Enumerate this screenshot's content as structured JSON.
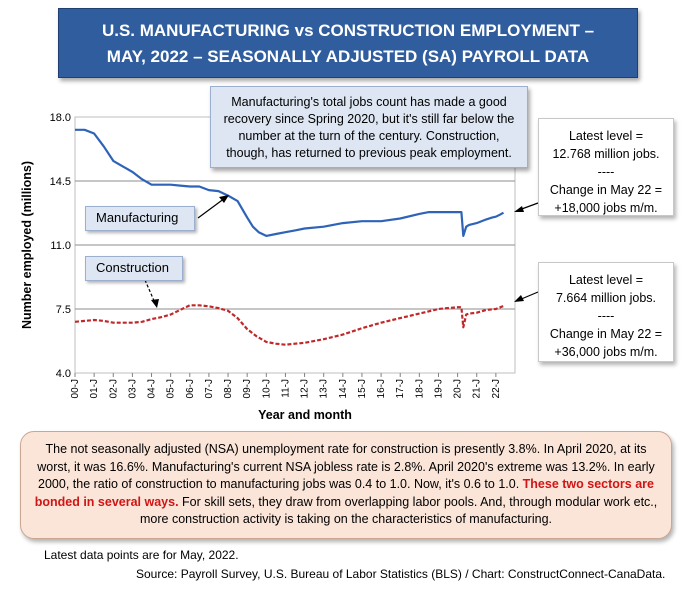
{
  "title": {
    "line1": "U.S. MANUFACTURING vs CONSTRUCTION EMPLOYMENT –",
    "line2": "MAY, 2022 – SEASONALLY ADJUSTED (SA) PAYROLL DATA"
  },
  "annotations": {
    "top_note": "Manufacturing's total jobs count has made a good recovery since Spring 2020, but it's still far below the number at the turn of the century. Construction, though, has returned to previous peak employment.",
    "manufacturing_label": "Manufacturing",
    "construction_label": "Construction",
    "mfg_callout": {
      "line1": "Latest level =",
      "line2": "12.768 million jobs.",
      "line3": "----",
      "line4": "Change in May 22 =",
      "line5": "+18,000 jobs m/m."
    },
    "con_callout": {
      "line1": "Latest level =",
      "line2": "7.664 million jobs.",
      "line3": "----",
      "line4": "Change in May 22 =",
      "line5": "+36,000 jobs m/m."
    }
  },
  "bottom_note": {
    "part1": "The not seasonally adjusted (NSA) unemployment rate for construction is presently 3.8%. In April 2020, at its worst, it was 16.6%. Manufacturing's current NSA jobless rate is 2.8%. April 2020's extreme was 13.2%. In early 2000, the ratio of construction to manufacturing jobs was 0.4 to 1.0. Now, it's 0.6 to 1.0.",
    "highlight": "These two sectors are bonded in several ways.",
    "part2": "For skill sets, they draw from overlapping labor pools. And, through modular work etc.,  more construction activity is taking on the characteristics of manufacturing."
  },
  "footer": {
    "latest": "Latest data points are for May, 2022.",
    "source": "Source: Payroll Survey, U.S. Bureau of Labor Statistics (BLS) / Chart: ConstructConnect-CanaData."
  },
  "chart_data": {
    "type": "line",
    "xlabel": "Year and month",
    "ylabel": "Number employed (millions)",
    "ylim": [
      4.0,
      18.0
    ],
    "yticks": [
      "4.0",
      "7.5",
      "11.0",
      "14.5",
      "18.0"
    ],
    "xticks": [
      "00-J",
      "01-J",
      "02-J",
      "03-J",
      "04-J",
      "05-J",
      "06-J",
      "07-J",
      "08-J",
      "09-J",
      "10-J",
      "11-J",
      "12-J",
      "13-J",
      "14-J",
      "15-J",
      "16-J",
      "17-J",
      "18-J",
      "19-J",
      "20-J",
      "21-J",
      "22-J"
    ],
    "grid": "horizontal",
    "series": [
      {
        "name": "Manufacturing",
        "color": "#2e63b8",
        "style": "solid",
        "x": [
          2000.0,
          2000.5,
          2001.0,
          2001.5,
          2002.0,
          2002.5,
          2003.0,
          2003.5,
          2004.0,
          2004.5,
          2005.0,
          2005.5,
          2006.0,
          2006.5,
          2007.0,
          2007.5,
          2008.0,
          2008.5,
          2009.0,
          2009.3,
          2009.6,
          2010.0,
          2010.5,
          2011.0,
          2011.5,
          2012.0,
          2013.0,
          2014.0,
          2015.0,
          2016.0,
          2017.0,
          2018.0,
          2018.5,
          2019.0,
          2019.5,
          2020.0,
          2020.2,
          2020.3,
          2020.45,
          2020.6,
          2021.0,
          2021.5,
          2021.8,
          2022.0,
          2022.2,
          2022.4
        ],
        "values": [
          17.3,
          17.3,
          17.1,
          16.4,
          15.6,
          15.3,
          15.0,
          14.6,
          14.3,
          14.3,
          14.3,
          14.25,
          14.2,
          14.2,
          14.0,
          13.95,
          13.7,
          13.4,
          12.5,
          12.0,
          11.7,
          11.5,
          11.6,
          11.7,
          11.8,
          11.9,
          12.0,
          12.2,
          12.3,
          12.3,
          12.45,
          12.7,
          12.8,
          12.8,
          12.8,
          12.8,
          12.8,
          11.5,
          12.0,
          12.1,
          12.2,
          12.4,
          12.5,
          12.55,
          12.65,
          12.768
        ]
      },
      {
        "name": "Construction",
        "color": "#c0292b",
        "style": "dashed",
        "x": [
          2000.0,
          2000.5,
          2001.0,
          2001.5,
          2002.0,
          2002.5,
          2003.0,
          2003.5,
          2004.0,
          2004.5,
          2005.0,
          2005.5,
          2006.0,
          2006.5,
          2007.0,
          2007.5,
          2008.0,
          2008.5,
          2009.0,
          2009.5,
          2010.0,
          2010.5,
          2011.0,
          2011.5,
          2012.0,
          2013.0,
          2014.0,
          2015.0,
          2016.0,
          2017.0,
          2018.0,
          2019.0,
          2020.0,
          2020.2,
          2020.3,
          2020.45,
          2020.6,
          2021.0,
          2021.5,
          2022.0,
          2022.4
        ],
        "values": [
          6.8,
          6.85,
          6.9,
          6.85,
          6.75,
          6.75,
          6.75,
          6.8,
          6.95,
          7.05,
          7.2,
          7.45,
          7.7,
          7.7,
          7.65,
          7.55,
          7.4,
          7.0,
          6.4,
          6.0,
          5.7,
          5.6,
          5.55,
          5.6,
          5.65,
          5.85,
          6.1,
          6.45,
          6.75,
          7.0,
          7.25,
          7.5,
          7.6,
          7.6,
          6.5,
          7.2,
          7.25,
          7.3,
          7.45,
          7.5,
          7.664
        ]
      }
    ]
  }
}
